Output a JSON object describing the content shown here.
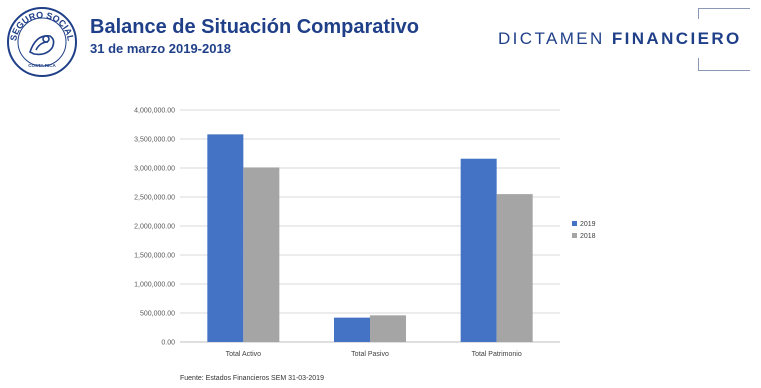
{
  "header": {
    "title": "Balance de Situación Comparativo",
    "subtitle": "31 de marzo 2019-2018",
    "brand_light": "DICTAMEN",
    "brand_bold": "FINANCIERO",
    "logo_text_top": "SEGURO SOCIAL",
    "logo_text_bottom": "COSTA RICA"
  },
  "colors": {
    "title": "#1f3f88",
    "series_2019": "#4472c4",
    "series_2018": "#a5a5a5",
    "grid": "#d9d9d9"
  },
  "chart_data": {
    "type": "bar",
    "categories": [
      "Total Activo",
      "Total Pasivo",
      "Total Patrimonio"
    ],
    "series": [
      {
        "name": "2019",
        "values": [
          3580000,
          420000,
          3160000
        ]
      },
      {
        "name": "2018",
        "values": [
          3010000,
          460000,
          2550000
        ]
      }
    ],
    "y_ticks": [
      "0.00",
      "500,000.00",
      "1,000,000.00",
      "1,500,000.00",
      "2,000,000.00",
      "2,500,000.00",
      "3,000,000.00",
      "3,500,000.00",
      "4,000,000.00"
    ],
    "ylim": [
      0,
      4000000
    ],
    "grid": true,
    "legend": "right"
  },
  "footer": {
    "source": "Fuente: Estados Financieros SEM 31-03-2019"
  }
}
